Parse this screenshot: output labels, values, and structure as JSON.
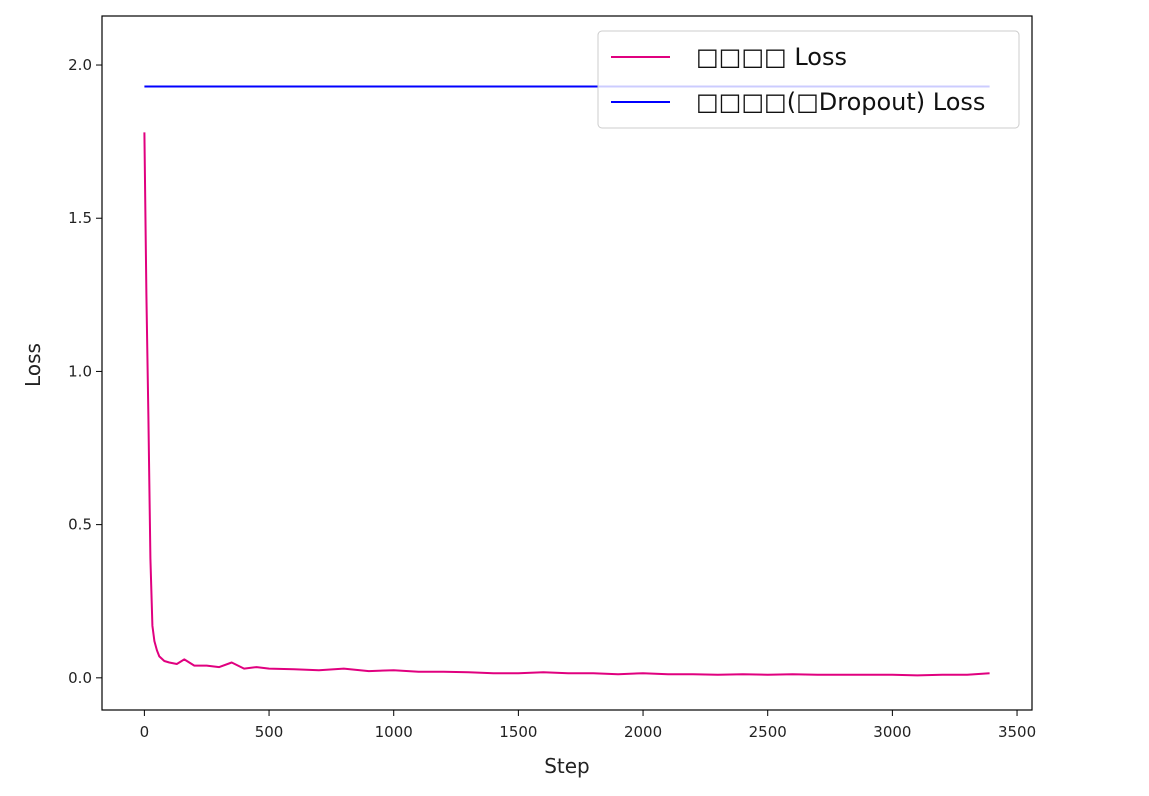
{
  "chart_data": {
    "type": "line",
    "xlabel": "Step",
    "ylabel": "Loss",
    "xlim": [
      -170,
      3560
    ],
    "ylim": [
      -0.105,
      2.16
    ],
    "xticks": [
      0,
      500,
      1000,
      1500,
      2000,
      2500,
      3000,
      3500
    ],
    "xtick_labels": [
      "0",
      "500",
      "1000",
      "1500",
      "2000",
      "2500",
      "3000",
      "3500"
    ],
    "yticks": [
      0.0,
      0.5,
      1.0,
      1.5,
      2.0
    ],
    "ytick_labels": [
      "0.0",
      "0.5",
      "1.0",
      "1.5",
      "2.0"
    ],
    "grid": false,
    "legend_position": "top-right",
    "series": [
      {
        "name": "□□□□ Loss",
        "color": "#e0007f",
        "x": [
          0,
          8,
          16,
          24,
          32,
          40,
          50,
          60,
          80,
          100,
          130,
          160,
          200,
          250,
          300,
          350,
          400,
          450,
          500,
          600,
          700,
          800,
          900,
          1000,
          1100,
          1200,
          1300,
          1400,
          1500,
          1600,
          1700,
          1800,
          1900,
          2000,
          2100,
          2200,
          2300,
          2400,
          2500,
          2600,
          2700,
          2800,
          2900,
          3000,
          3100,
          3200,
          3300,
          3390
        ],
        "values": [
          1.78,
          1.25,
          0.85,
          0.39,
          0.17,
          0.12,
          0.09,
          0.07,
          0.055,
          0.05,
          0.045,
          0.06,
          0.04,
          0.04,
          0.035,
          0.05,
          0.03,
          0.035,
          0.03,
          0.028,
          0.025,
          0.03,
          0.022,
          0.025,
          0.02,
          0.02,
          0.018,
          0.015,
          0.015,
          0.018,
          0.015,
          0.015,
          0.012,
          0.015,
          0.012,
          0.012,
          0.01,
          0.012,
          0.01,
          0.012,
          0.01,
          0.01,
          0.01,
          0.01,
          0.008,
          0.01,
          0.01,
          0.015
        ]
      },
      {
        "name": "□□□□(□Dropout) Loss",
        "color": "#0000ff",
        "x": [
          0,
          3390
        ],
        "values": [
          1.93,
          1.93
        ]
      }
    ]
  }
}
